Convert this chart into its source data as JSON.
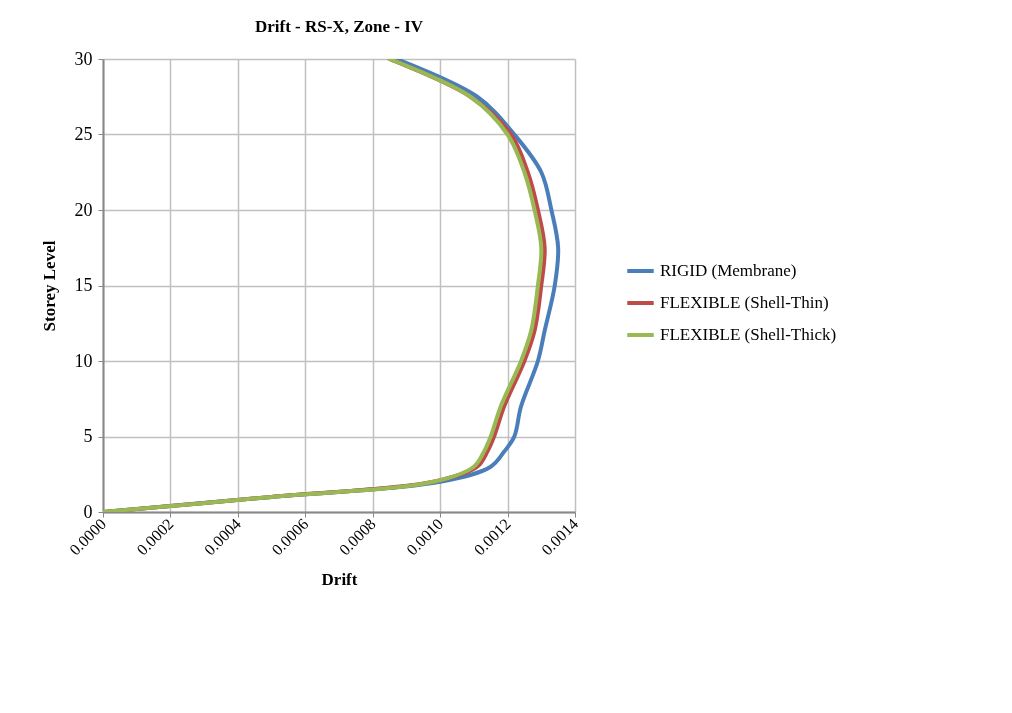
{
  "chart_data": {
    "type": "line",
    "title": "Drift - RS-X, Zone - IV",
    "xlabel": "Drift",
    "ylabel": "Storey Level",
    "xlim": [
      0,
      0.0014
    ],
    "ylim": [
      0,
      30
    ],
    "xticks": [
      {
        "value": 0,
        "label": "0.0000"
      },
      {
        "value": 0.0002,
        "label": "0.0002"
      },
      {
        "value": 0.0004,
        "label": "0.0004"
      },
      {
        "value": 0.0006,
        "label": "0.0006"
      },
      {
        "value": 0.0008,
        "label": "0.0008"
      },
      {
        "value": 0.001,
        "label": "0.0010"
      },
      {
        "value": 0.0012,
        "label": "0.0012"
      },
      {
        "value": 0.0014,
        "label": "0.0014"
      }
    ],
    "yticks": [
      0,
      5,
      10,
      15,
      20,
      25,
      30
    ],
    "grid": true,
    "legend": "right",
    "marker": "none",
    "line_style": "solid",
    "series": [
      {
        "name": "RIGID (Membrane)",
        "color": "#4a7ebb",
        "x": [
          0,
          0.0005,
          0.001,
          0.00115,
          0.00119,
          0.00122,
          0.00124,
          0.00129,
          0.00131,
          0.00134,
          0.00135,
          0.00133,
          0.0013,
          0.00122,
          0.00111,
          0.00087
        ],
        "values": [
          0,
          1,
          2,
          3,
          4,
          5,
          7,
          10,
          12,
          15,
          17.5,
          20,
          22.5,
          25,
          27.5,
          30
        ]
      },
      {
        "name": "FLEXIBLE (Shell-Thin)",
        "color": "#be4b48",
        "x": [
          0,
          0.0005,
          0.00098,
          0.00111,
          0.00114,
          0.00116,
          0.00119,
          0.00125,
          0.00128,
          0.0013,
          0.00131,
          0.00129,
          0.00126,
          0.00121,
          0.00109,
          0.00085
        ],
        "values": [
          0,
          1,
          2,
          3,
          4,
          5,
          7,
          10,
          12,
          15,
          17.5,
          20,
          22.5,
          25,
          27.5,
          30
        ]
      },
      {
        "name": "FLEXIBLE (Shell-Thick)",
        "color": "#98b954",
        "x": [
          0,
          0.0005,
          0.00098,
          0.0011,
          0.00113,
          0.00115,
          0.00118,
          0.00124,
          0.00127,
          0.00129,
          0.0013,
          0.00128,
          0.00125,
          0.0012,
          0.00109,
          0.00085
        ],
        "values": [
          0,
          1,
          2,
          3,
          4,
          5,
          7,
          10,
          12,
          15,
          17.5,
          20,
          22.5,
          25,
          27.5,
          30
        ]
      }
    ]
  }
}
